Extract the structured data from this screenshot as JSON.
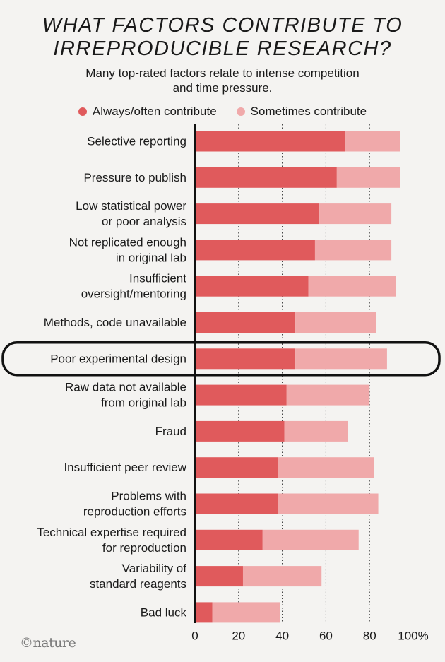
{
  "chart_data": {
    "type": "bar",
    "stacked": true,
    "orientation": "horizontal",
    "title": [
      "WHAT FACTORS CONTRIBUTE TO",
      "IRREPRODUCIBLE RESEARCH?"
    ],
    "subtitle": [
      "Many top-rated factors relate to intense competition",
      "and time pressure."
    ],
    "legend": [
      {
        "label": "Always/often contribute",
        "color": "#e05a5c"
      },
      {
        "label": "Sometimes contribute",
        "color": "#f0a9aa"
      }
    ],
    "categories": [
      [
        "Selective reporting"
      ],
      [
        "Pressure to publish"
      ],
      [
        "Low statistical power",
        "or poor analysis"
      ],
      [
        "Not replicated enough",
        "in original lab"
      ],
      [
        "Insufficient",
        "oversight/mentoring"
      ],
      [
        "Methods, code unavailable"
      ],
      [
        "Poor experimental design"
      ],
      [
        "Raw data not available",
        "from original lab"
      ],
      [
        "Fraud"
      ],
      [
        "Insufficient peer review"
      ],
      [
        "Problems with",
        "reproduction efforts"
      ],
      [
        "Technical expertise required",
        "for reproduction"
      ],
      [
        "Variability of",
        "standard reagents"
      ],
      [
        "Bad luck"
      ]
    ],
    "series": [
      {
        "name": "Always/often contribute",
        "values": [
          69,
          65,
          57,
          55,
          52,
          46,
          46,
          42,
          41,
          38,
          38,
          31,
          22,
          8
        ]
      },
      {
        "name": "Sometimes contribute",
        "values": [
          25,
          29,
          33,
          35,
          40,
          37,
          42,
          38,
          29,
          44,
          46,
          44,
          36,
          31
        ]
      }
    ],
    "highlight_index": 6,
    "xlim": [
      0,
      100
    ],
    "xticks": [
      "0",
      "20",
      "40",
      "60",
      "80",
      "100%"
    ],
    "grid": "vertical dotted"
  },
  "credit": "©nature"
}
